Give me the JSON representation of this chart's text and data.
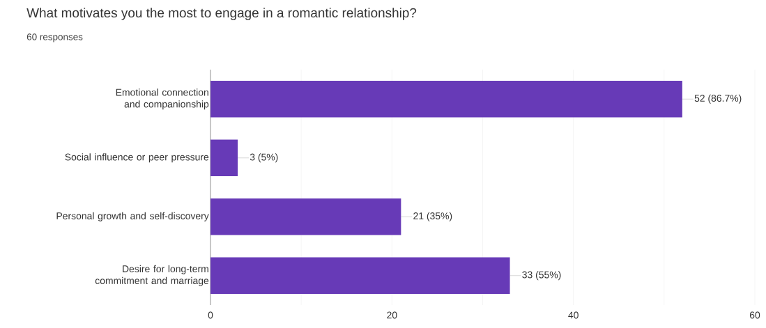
{
  "chart_data": {
    "type": "bar",
    "orientation": "horizontal",
    "title": "What motivates you the most to engage in a romantic relationship?",
    "subtitle": "60 responses",
    "categories": [
      "Emotional connection and companionship",
      "Social influence or peer pressure",
      "Personal growth and self-discovery",
      "Desire for long-term commitment and marriage"
    ],
    "values": [
      52,
      3,
      21,
      33
    ],
    "value_labels": [
      "52 (86.7%)",
      "3 (5%)",
      "21 (35%)",
      "33 (55%)"
    ],
    "color": "#673ab7",
    "xlim": [
      0,
      60
    ],
    "xticks": [
      0,
      {
        "value": 10,
        "label": null
      },
      20,
      {
        "value": 30,
        "label": null
      },
      40,
      {
        "value": 50,
        "label": null
      },
      60
    ],
    "grid": "x"
  }
}
